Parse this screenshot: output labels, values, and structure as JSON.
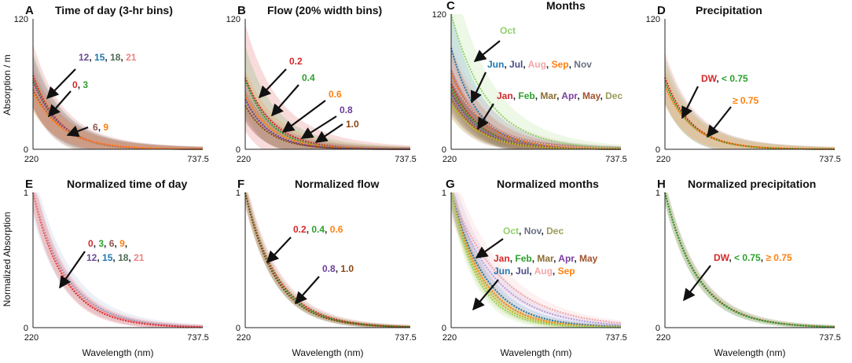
{
  "figure": {
    "ylabel_top": "Absorption / m",
    "ylabel_bottom": "Normalized Absorption",
    "xlabel": "Wavelength (nm)"
  },
  "chart_data": [
    {
      "id": "A",
      "type": "line",
      "title": "Time of day (3-hr bins)",
      "xlim": [
        220,
        737.5
      ],
      "ylim": [
        0,
        120
      ],
      "xticks": [
        "220",
        "737.5"
      ],
      "yticks": [
        "0",
        "120"
      ],
      "series": [
        {
          "name": "0",
          "color": "#d62728",
          "start": 68,
          "k": 0.0125,
          "band": 28
        },
        {
          "name": "3",
          "color": "#2ca02c",
          "start": 64,
          "k": 0.0125,
          "band": 24
        },
        {
          "name": "12",
          "color": "#6a4c93",
          "start": 62,
          "k": 0.012,
          "band": 22
        },
        {
          "name": "21",
          "color": "#f08080",
          "start": 60,
          "k": 0.012,
          "band": 20
        },
        {
          "name": "6",
          "color": "#8c564b",
          "start": 55,
          "k": 0.0115,
          "band": 18
        },
        {
          "name": "9",
          "color": "#ff7f0e",
          "start": 52,
          "k": 0.011,
          "band": 16
        }
      ],
      "annotations": [
        {
          "parts": [
            {
              "t": "12",
              "c": "#6a4c93"
            },
            {
              "t": ", ",
              "c": "#222"
            },
            {
              "t": "15",
              "c": "#1f77b4"
            },
            {
              "t": ", ",
              "c": "#222"
            },
            {
              "t": "18",
              "c": "#4d6b53"
            },
            {
              "t": ", ",
              "c": "#222"
            },
            {
              "t": "21",
              "c": "#f08080"
            }
          ]
        },
        {
          "parts": [
            {
              "t": "0",
              "c": "#d62728"
            },
            {
              "t": ", ",
              "c": "#222"
            },
            {
              "t": "3",
              "c": "#2ca02c"
            }
          ]
        },
        {
          "parts": [
            {
              "t": "6",
              "c": "#8c564b"
            },
            {
              "t": ", ",
              "c": "#222"
            },
            {
              "t": "9",
              "c": "#ff7f0e"
            }
          ]
        }
      ]
    },
    {
      "id": "B",
      "type": "line",
      "title": "Flow (20% width bins)",
      "xlim": [
        220,
        737.5
      ],
      "ylim": [
        0,
        120
      ],
      "xticks": [
        "220",
        "737.5"
      ],
      "yticks": [
        "0",
        "120"
      ],
      "series": [
        {
          "name": "0.2",
          "color": "#d62728",
          "start": 66,
          "k": 0.0115,
          "band": 48
        },
        {
          "name": "0.4",
          "color": "#2ca02c",
          "start": 64,
          "k": 0.0125,
          "band": 30
        },
        {
          "name": "0.6",
          "color": "#ff7f0e",
          "start": 50,
          "k": 0.012,
          "band": 22
        },
        {
          "name": "0.8",
          "color": "#6a3d9a",
          "start": 46,
          "k": 0.013,
          "band": 18
        },
        {
          "name": "1.0",
          "color": "#8b4513",
          "start": 40,
          "k": 0.013,
          "band": 14
        }
      ],
      "annotations": [
        {
          "parts": [
            {
              "t": "0.2",
              "c": "#d62728"
            }
          ]
        },
        {
          "parts": [
            {
              "t": "0.4",
              "c": "#2ca02c"
            }
          ]
        },
        {
          "parts": [
            {
              "t": "0.6",
              "c": "#ff7f0e"
            }
          ]
        },
        {
          "parts": [
            {
              "t": "0.8",
              "c": "#6a3d9a"
            }
          ]
        },
        {
          "parts": [
            {
              "t": "1.0",
              "c": "#8b4513"
            }
          ]
        }
      ]
    },
    {
      "id": "C",
      "type": "line",
      "title": "Months",
      "xlim": [
        220,
        737.5
      ],
      "ylim": [
        0,
        120
      ],
      "xticks": [
        "220",
        "737.5"
      ],
      "yticks": [
        "0",
        "120"
      ],
      "series": [
        {
          "name": "Oct",
          "color": "#8fd16a",
          "start": 120,
          "k": 0.009,
          "band": 40
        },
        {
          "name": "Jun",
          "color": "#1f77b4",
          "start": 90,
          "k": 0.012,
          "band": 30
        },
        {
          "name": "Jul",
          "color": "#9467bd",
          "start": 70,
          "k": 0.011,
          "band": 20
        },
        {
          "name": "Sep",
          "color": "#ff7f0e",
          "start": 68,
          "k": 0.0105,
          "band": 20
        },
        {
          "name": "Aug",
          "color": "#f4a6a6",
          "start": 62,
          "k": 0.009,
          "band": 30
        },
        {
          "name": "Jan",
          "color": "#d62728",
          "start": 58,
          "k": 0.0115,
          "band": 15
        },
        {
          "name": "Feb",
          "color": "#2ca02c",
          "start": 55,
          "k": 0.0115,
          "band": 15
        },
        {
          "name": "Mar",
          "color": "#8c6d31",
          "start": 52,
          "k": 0.0115,
          "band": 15
        },
        {
          "name": "Apr",
          "color": "#7b3fa0",
          "start": 50,
          "k": 0.0115,
          "band": 15
        },
        {
          "name": "Nov",
          "color": "#8a8fa3",
          "start": 48,
          "k": 0.011,
          "band": 15
        },
        {
          "name": "May",
          "color": "#a0522d",
          "start": 45,
          "k": 0.0115,
          "band": 15
        },
        {
          "name": "Dec",
          "color": "#bcbd22",
          "start": 40,
          "k": 0.011,
          "band": 12
        }
      ],
      "annotations": [
        {
          "parts": [
            {
              "t": "Oct",
              "c": "#8fd16a"
            }
          ]
        },
        {
          "parts": [
            {
              "t": "Jun",
              "c": "#1f77b4"
            },
            {
              "t": ", ",
              "c": "#222"
            },
            {
              "t": "Jul",
              "c": "#4a4a8a"
            },
            {
              "t": ", ",
              "c": "#222"
            },
            {
              "t": "Aug",
              "c": "#f4a6a6"
            },
            {
              "t": ", ",
              "c": "#222"
            },
            {
              "t": "Sep",
              "c": "#ff7f0e"
            },
            {
              "t": ", ",
              "c": "#222"
            },
            {
              "t": "Nov",
              "c": "#6b7083"
            }
          ]
        },
        {
          "parts": [
            {
              "t": "Jan",
              "c": "#d62728"
            },
            {
              "t": ", ",
              "c": "#222"
            },
            {
              "t": "Feb",
              "c": "#2ca02c"
            },
            {
              "t": ", ",
              "c": "#222"
            },
            {
              "t": "Mar",
              "c": "#8c6d31"
            },
            {
              "t": ", ",
              "c": "#222"
            },
            {
              "t": "Apr",
              "c": "#7b3fa0"
            },
            {
              "t": ", ",
              "c": "#222"
            },
            {
              "t": "May",
              "c": "#a0522d"
            },
            {
              "t": ", ",
              "c": "#222"
            },
            {
              "t": "Dec",
              "c": "#9a9a5a"
            }
          ]
        }
      ]
    },
    {
      "id": "D",
      "type": "line",
      "title": "Precipitation",
      "xlim": [
        220,
        737.5
      ],
      "ylim": [
        0,
        120
      ],
      "xticks": [
        "220",
        "737.5"
      ],
      "yticks": [
        "0",
        "120"
      ],
      "series": [
        {
          "name": "DW",
          "color": "#d62728",
          "start": 66,
          "k": 0.0125,
          "band": 22
        },
        {
          "name": "< 0.75",
          "color": "#2ca02c",
          "start": 62,
          "k": 0.0125,
          "band": 20
        },
        {
          "name": "≥ 0.75",
          "color": "#ff7f0e",
          "start": 58,
          "k": 0.012,
          "band": 16
        }
      ],
      "annotations": [
        {
          "parts": [
            {
              "t": "DW",
              "c": "#d62728"
            },
            {
              "t": ", ",
              "c": "#222"
            },
            {
              "t": "< 0.75",
              "c": "#2ca02c"
            }
          ]
        },
        {
          "parts": [
            {
              "t": "≥ 0.75",
              "c": "#ff7f0e"
            }
          ]
        }
      ]
    },
    {
      "id": "E",
      "type": "line",
      "title": "Normalized time of day",
      "xlim": [
        220,
        737.5
      ],
      "ylim": [
        0,
        1
      ],
      "xticks": [
        "220",
        "737.5"
      ],
      "yticks": [
        "0",
        "1"
      ],
      "series": [
        {
          "name": "12",
          "color": "#8da0cb",
          "start": 1,
          "k": 0.0095,
          "band": 0.18
        },
        {
          "name": "0",
          "color": "#d62728",
          "start": 1,
          "k": 0.0105,
          "band": 0.12
        },
        {
          "name": "21",
          "color": "#f08080",
          "start": 1,
          "k": 0.01,
          "band": 0.12
        }
      ],
      "annotations": [
        {
          "parts": [
            {
              "t": "0",
              "c": "#d62728"
            },
            {
              "t": ", ",
              "c": "#222"
            },
            {
              "t": "3",
              "c": "#2ca02c"
            },
            {
              "t": ", ",
              "c": "#222"
            },
            {
              "t": "6",
              "c": "#8c564b"
            },
            {
              "t": ", ",
              "c": "#222"
            },
            {
              "t": "9",
              "c": "#ff7f0e"
            },
            {
              "t": ",",
              "c": "#222"
            }
          ]
        },
        {
          "parts": [
            {
              "t": "12",
              "c": "#6a4c93"
            },
            {
              "t": ", ",
              "c": "#222"
            },
            {
              "t": "15",
              "c": "#1f77b4"
            },
            {
              "t": ", ",
              "c": "#222"
            },
            {
              "t": "18",
              "c": "#4d6b53"
            },
            {
              "t": ", ",
              "c": "#222"
            },
            {
              "t": "21",
              "c": "#f08080"
            }
          ]
        }
      ]
    },
    {
      "id": "F",
      "type": "line",
      "title": "Normalized flow",
      "xlim": [
        220,
        737.5
      ],
      "ylim": [
        0,
        1
      ],
      "xticks": [
        "220",
        "737.5"
      ],
      "yticks": [
        "0",
        "1"
      ],
      "series": [
        {
          "name": "0.2",
          "color": "#d62728",
          "start": 1,
          "k": 0.0098,
          "band": 0.1
        },
        {
          "name": "0.4",
          "color": "#2ca02c",
          "start": 1,
          "k": 0.0102,
          "band": 0.08
        },
        {
          "name": "1.0",
          "color": "#8b4513",
          "start": 1,
          "k": 0.0105,
          "band": 0.06
        }
      ],
      "annotations": [
        {
          "parts": [
            {
              "t": "0.2",
              "c": "#d62728"
            },
            {
              "t": ", ",
              "c": "#222"
            },
            {
              "t": "0.4",
              "c": "#2ca02c"
            },
            {
              "t": ", ",
              "c": "#222"
            },
            {
              "t": "0.6",
              "c": "#ff7f0e"
            }
          ]
        },
        {
          "parts": [
            {
              "t": "0.8",
              "c": "#6a3d9a"
            },
            {
              "t": ", ",
              "c": "#222"
            },
            {
              "t": "1.0",
              "c": "#8b4513"
            }
          ]
        }
      ]
    },
    {
      "id": "G",
      "type": "line",
      "title": "Normalized months",
      "xlim": [
        220,
        737.5
      ],
      "ylim": [
        0,
        1
      ],
      "xticks": [
        "220",
        "737.5"
      ],
      "yticks": [
        "0",
        "1"
      ],
      "series": [
        {
          "name": "Aug",
          "color": "#f4a6a6",
          "start": 1,
          "k": 0.0065,
          "band": 0.2
        },
        {
          "name": "Oct",
          "color": "#b39ddb",
          "start": 1,
          "k": 0.0075,
          "band": 0.15
        },
        {
          "name": "Jun",
          "color": "#1f77b4",
          "start": 1,
          "k": 0.0095,
          "band": 0.1
        },
        {
          "name": "Sep",
          "color": "#ff7f0e",
          "start": 1,
          "k": 0.0105,
          "band": 0.1
        },
        {
          "name": "Dec",
          "color": "#bcbd22",
          "start": 1,
          "k": 0.0115,
          "band": 0.1
        },
        {
          "name": "Feb",
          "color": "#8fd16a",
          "start": 1,
          "k": 0.0125,
          "band": 0.1
        }
      ],
      "annotations": [
        {
          "parts": [
            {
              "t": "Oct",
              "c": "#8fd16a"
            },
            {
              "t": ", ",
              "c": "#222"
            },
            {
              "t": "Nov",
              "c": "#6b7083"
            },
            {
              "t": ", ",
              "c": "#222"
            },
            {
              "t": "Dec",
              "c": "#9a9a5a"
            }
          ]
        },
        {
          "parts": [
            {
              "t": "Jan",
              "c": "#d62728"
            },
            {
              "t": ", ",
              "c": "#222"
            },
            {
              "t": "Feb",
              "c": "#2ca02c"
            },
            {
              "t": ", ",
              "c": "#222"
            },
            {
              "t": "Mar",
              "c": "#8c6d31"
            },
            {
              "t": ", ",
              "c": "#222"
            },
            {
              "t": "Apr",
              "c": "#7b3fa0"
            },
            {
              "t": ", ",
              "c": "#222"
            },
            {
              "t": "May",
              "c": "#a0522d"
            }
          ]
        },
        {
          "parts": [
            {
              "t": "Jun",
              "c": "#1f77b4"
            },
            {
              "t": ", ",
              "c": "#222"
            },
            {
              "t": "Jul",
              "c": "#4a4a8a"
            },
            {
              "t": ", ",
              "c": "#222"
            },
            {
              "t": "Aug",
              "c": "#f4a6a6"
            },
            {
              "t": ", ",
              "c": "#222"
            },
            {
              "t": "Sep",
              "c": "#ff7f0e"
            }
          ]
        }
      ]
    },
    {
      "id": "H",
      "type": "line",
      "title": "Normalized precipitation",
      "xlim": [
        220,
        737.5
      ],
      "ylim": [
        0,
        1
      ],
      "xticks": [
        "220",
        "737.5"
      ],
      "yticks": [
        "0",
        "1"
      ],
      "series": [
        {
          "name": "DW",
          "color": "#8b4513",
          "start": 1,
          "k": 0.0098,
          "band": 0.08
        },
        {
          "name": "< 0.75",
          "color": "#2ca02c",
          "start": 1,
          "k": 0.01,
          "band": 0.07
        }
      ],
      "annotations": [
        {
          "parts": [
            {
              "t": "DW",
              "c": "#d62728"
            },
            {
              "t": ", ",
              "c": "#222"
            },
            {
              "t": "< 0.75",
              "c": "#2ca02c"
            },
            {
              "t": ", ",
              "c": "#222"
            },
            {
              "t": "≥ 0.75",
              "c": "#ff7f0e"
            }
          ]
        }
      ]
    }
  ]
}
